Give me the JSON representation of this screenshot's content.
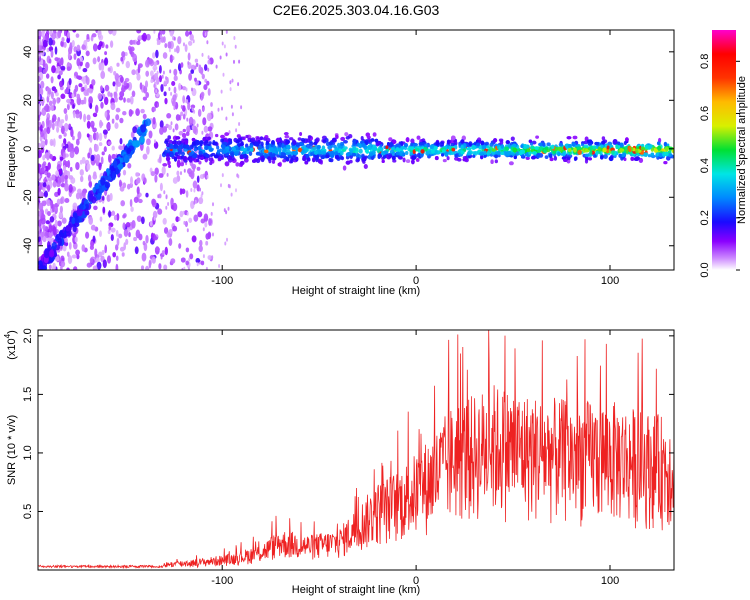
{
  "figure_title": "C2E6.2025.303.04.16.G03",
  "chart_data": [
    {
      "type": "heatmap",
      "title": "C2E6.2025.303.04.16.G03",
      "xlabel": "Height of straight line (km)",
      "ylabel": "Frequency (Hz)",
      "xlim": [
        -195,
        133
      ],
      "ylim": [
        -50,
        49
      ],
      "xticks": [
        -100,
        0,
        100
      ],
      "yticks": [
        -40,
        -20,
        0,
        20,
        40
      ],
      "colorbar": {
        "label": "Normalized spectral amplitude",
        "range": [
          0.0,
          0.92
        ],
        "ticks": [
          0.0,
          0.2,
          0.4,
          0.6,
          0.8
        ],
        "colormap": [
          "#ffffff",
          "#cc88ff",
          "#7a00ff",
          "#1a0aff",
          "#0088ff",
          "#00e5e5",
          "#00e033",
          "#d8f000",
          "#ffbb00",
          "#ff3300",
          "#ff0000",
          "#ff00cc"
        ]
      },
      "features": {
        "linear_ramp": {
          "from": [
            -195,
            -50
          ],
          "to": [
            -138,
            10
          ]
        },
        "stable_band": {
          "frequency_hz": [
            -1,
            0
          ],
          "x_range": [
            -130,
            133
          ]
        }
      }
    },
    {
      "type": "line",
      "xlabel": "Height of straight line (km)",
      "ylabel": "SNR (10 * v/v)",
      "scale_label": "(x10",
      "scale_exponent": "4",
      "xlim": [
        -195,
        133
      ],
      "ylim": [
        0,
        2.05
      ],
      "xticks": [
        -100,
        0,
        100
      ],
      "yticks": [
        0.5,
        1.0,
        1.5,
        2.0
      ],
      "ytick_labels": [
        "0.5",
        "1.0",
        "1.5",
        "2.0"
      ],
      "color": "#ee2222",
      "envelope": [
        {
          "x": -195,
          "y": 0.03
        },
        {
          "x": -140,
          "y": 0.05
        },
        {
          "x": -110,
          "y": 0.1
        },
        {
          "x": -95,
          "y": 0.14
        },
        {
          "x": -80,
          "y": 0.22
        },
        {
          "x": -70,
          "y": 0.35
        },
        {
          "x": -55,
          "y": 0.3
        },
        {
          "x": -40,
          "y": 0.35
        },
        {
          "x": -30,
          "y": 0.55
        },
        {
          "x": -20,
          "y": 0.75
        },
        {
          "x": -10,
          "y": 0.85
        },
        {
          "x": 0,
          "y": 1.0
        },
        {
          "x": 10,
          "y": 1.2
        },
        {
          "x": 20,
          "y": 1.45
        },
        {
          "x": 30,
          "y": 1.5
        },
        {
          "x": 40,
          "y": 1.6
        },
        {
          "x": 60,
          "y": 1.5
        },
        {
          "x": 80,
          "y": 1.45
        },
        {
          "x": 100,
          "y": 1.45
        },
        {
          "x": 120,
          "y": 1.35
        },
        {
          "x": 133,
          "y": 1.3
        }
      ]
    }
  ]
}
